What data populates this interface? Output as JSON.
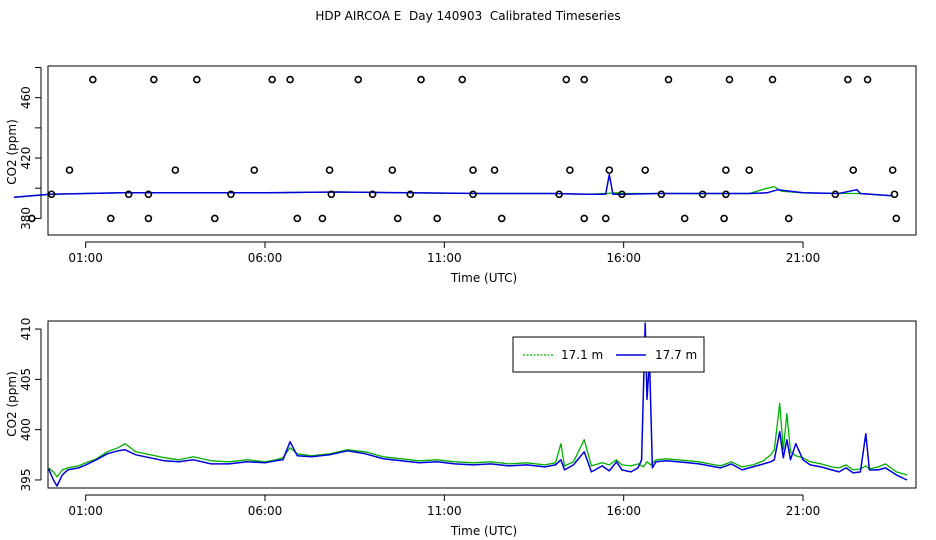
{
  "title": "HDP AIRCOA E  Day 140903  Calibrated Timeseries",
  "colors": {
    "green": "#00b000",
    "blue": "#0000dd",
    "black": "#000000"
  },
  "chart_data": [
    {
      "type": "scatter+line",
      "xlabel": "Time (UTC)",
      "ylabel": "CO2 (ppm)",
      "x_ticks": [
        1,
        6,
        11,
        16,
        21
      ],
      "x_tick_labels": [
        "01:00",
        "06:00",
        "11:00",
        "16:00",
        "21:00"
      ],
      "y_ticks": [
        380,
        420,
        460
      ],
      "y_tick_labels": [
        "380",
        "420",
        "460"
      ],
      "xlim": [
        -0.05,
        24.15
      ],
      "ylim": [
        369,
        481
      ],
      "grid": false,
      "calibration_points_hours": {
        "380": [
          -0.5,
          1.7,
          2.75,
          4.6,
          6.9,
          7.6,
          9.7,
          10.8,
          12.6,
          14.9,
          15.5,
          17.7,
          18.8,
          20.6,
          23.6
        ],
        "396": [
          0.05,
          2.2,
          2.75,
          5.05,
          7.85,
          9.0,
          10.05,
          11.8,
          14.2,
          15.95,
          17.05,
          18.2,
          18.85,
          21.9,
          23.55
        ],
        "412": [
          0.55,
          3.5,
          5.7,
          7.8,
          9.55,
          11.8,
          12.4,
          14.5,
          15.6,
          16.6,
          18.85,
          19.5,
          22.4,
          23.5
        ],
        "472": [
          1.2,
          2.9,
          4.1,
          6.2,
          6.7,
          8.6,
          10.35,
          11.5,
          14.4,
          14.9,
          17.25,
          18.95,
          20.15,
          22.25,
          22.8
        ]
      },
      "series": [
        {
          "name": "17.1 m",
          "x": [
            -1.0,
            0.0,
            1.0,
            2.0,
            4.0,
            6.0,
            8.0,
            10.0,
            12.0,
            14.0,
            15.0,
            15.5,
            15.8,
            16.0,
            17.0,
            18.0,
            19.5,
            20.0,
            20.2,
            20.4,
            21.0,
            22.0,
            22.5,
            23.5
          ],
          "values": [
            394,
            396,
            396.5,
            397,
            397,
            397,
            397.5,
            397,
            396.5,
            396.5,
            396,
            396.5,
            397,
            396.5,
            396.5,
            396.5,
            396.5,
            400,
            401,
            398,
            397,
            396.5,
            396.5,
            395
          ]
        },
        {
          "name": "17.7 m",
          "x": [
            -1.0,
            0.0,
            1.0,
            2.0,
            4.0,
            6.0,
            8.0,
            10.0,
            12.0,
            14.0,
            15.0,
            15.5,
            15.6,
            15.7,
            16.0,
            17.0,
            18.0,
            19.5,
            20.0,
            20.3,
            21.0,
            22.0,
            22.5,
            22.6,
            23.5
          ],
          "values": [
            394,
            396,
            396.5,
            397,
            397,
            397,
            397.5,
            397,
            396.5,
            396.5,
            396,
            396,
            409,
            396,
            396,
            396.5,
            396.5,
            396.5,
            397,
            399,
            397,
            396.5,
            399,
            396.5,
            395
          ]
        }
      ]
    },
    {
      "type": "line",
      "xlabel": "Time (UTC)",
      "ylabel": "CO2 (ppm)",
      "x_ticks": [
        1,
        6,
        11,
        16,
        21
      ],
      "x_tick_labels": [
        "01:00",
        "06:00",
        "11:00",
        "16:00",
        "21:00"
      ],
      "y_ticks": [
        395,
        400,
        405,
        410
      ],
      "y_tick_labels": [
        "395",
        "400",
        "405",
        "410"
      ],
      "xlim": [
        -0.05,
        24.15
      ],
      "ylim": [
        394.2,
        410.8
      ],
      "grid": false,
      "legend": {
        "placement": "top-center",
        "entries": [
          "17.1 m",
          "17.7 m"
        ]
      },
      "series": [
        {
          "name": "17.1 m",
          "x": [
            -0.03,
            0.1,
            0.2,
            0.35,
            0.5,
            0.8,
            1.0,
            1.3,
            1.6,
            1.9,
            2.1,
            2.4,
            2.8,
            3.2,
            3.6,
            4.0,
            4.5,
            5.0,
            5.5,
            6.0,
            6.3,
            6.5,
            6.7,
            6.9,
            7.3,
            7.8,
            8.3,
            8.8,
            9.3,
            9.8,
            10.3,
            10.8,
            11.3,
            11.8,
            12.3,
            12.8,
            13.3,
            13.8,
            14.1,
            14.25,
            14.35,
            14.6,
            14.9,
            15.1,
            15.4,
            15.6,
            15.8,
            15.95,
            16.2,
            16.4,
            16.55,
            16.65,
            16.75,
            16.9,
            17.2,
            17.5,
            17.8,
            18.1,
            18.4,
            18.7,
            19.0,
            19.3,
            19.6,
            19.9,
            20.1,
            20.2,
            20.35,
            20.45,
            20.55,
            20.65,
            20.8,
            21.0,
            21.2,
            21.5,
            21.8,
            22.0,
            22.2,
            22.4,
            22.6,
            22.75,
            22.85,
            23.1,
            23.3,
            23.6,
            23.9
          ],
          "values": [
            396.2,
            395.8,
            395.3,
            396.0,
            396.2,
            396.4,
            396.7,
            397.1,
            397.8,
            398.2,
            398.6,
            397.8,
            397.5,
            397.2,
            397.0,
            397.3,
            396.9,
            396.8,
            397.0,
            396.8,
            397.0,
            397.2,
            398.2,
            397.6,
            397.4,
            397.6,
            398.0,
            397.8,
            397.3,
            397.1,
            396.9,
            397.0,
            396.8,
            396.7,
            396.8,
            396.6,
            396.7,
            396.5,
            396.7,
            398.6,
            396.4,
            396.8,
            399.0,
            396.4,
            396.7,
            396.5,
            397.0,
            396.5,
            396.4,
            396.6,
            396.3,
            396.8,
            396.5,
            397.0,
            397.1,
            397.0,
            396.9,
            396.8,
            396.6,
            396.4,
            396.8,
            396.3,
            396.5,
            396.9,
            397.5,
            398.0,
            402.6,
            398.0,
            401.6,
            397.8,
            397.4,
            397.2,
            396.8,
            396.6,
            396.3,
            396.2,
            396.5,
            396.0,
            396.1,
            396.4,
            396.1,
            396.3,
            396.6,
            395.8,
            395.5
          ]
        },
        {
          "name": "17.7 m",
          "x": [
            -0.03,
            0.1,
            0.2,
            0.35,
            0.5,
            0.8,
            1.0,
            1.3,
            1.6,
            1.9,
            2.1,
            2.4,
            2.8,
            3.2,
            3.6,
            4.0,
            4.5,
            5.0,
            5.5,
            6.0,
            6.3,
            6.5,
            6.7,
            6.9,
            7.3,
            7.8,
            8.3,
            8.8,
            9.3,
            9.8,
            10.3,
            10.8,
            11.3,
            11.8,
            12.3,
            12.8,
            13.3,
            13.8,
            14.1,
            14.25,
            14.35,
            14.6,
            14.9,
            15.1,
            15.4,
            15.6,
            15.8,
            15.95,
            16.2,
            16.4,
            16.5,
            16.6,
            16.65,
            16.72,
            16.8,
            16.9,
            17.2,
            17.5,
            17.8,
            18.1,
            18.4,
            18.7,
            19.0,
            19.3,
            19.6,
            19.9,
            20.1,
            20.2,
            20.35,
            20.45,
            20.55,
            20.65,
            20.8,
            21.0,
            21.2,
            21.5,
            21.8,
            22.0,
            22.2,
            22.4,
            22.6,
            22.75,
            22.85,
            23.1,
            23.3,
            23.6,
            23.9
          ],
          "values": [
            396.1,
            395.0,
            394.4,
            395.5,
            396.0,
            396.2,
            396.5,
            397.0,
            397.6,
            397.9,
            398.0,
            397.5,
            397.2,
            396.9,
            396.8,
            397.0,
            396.6,
            396.6,
            396.8,
            396.7,
            396.9,
            397.0,
            398.8,
            397.4,
            397.3,
            397.5,
            397.9,
            397.6,
            397.1,
            396.9,
            396.7,
            396.8,
            396.6,
            396.5,
            396.6,
            396.4,
            396.5,
            396.3,
            396.5,
            397.0,
            396.0,
            396.5,
            397.8,
            395.8,
            396.4,
            395.9,
            396.8,
            396.0,
            395.8,
            396.2,
            397.0,
            410.6,
            403.0,
            407.0,
            396.2,
            396.8,
            396.9,
            396.8,
            396.7,
            396.6,
            396.4,
            396.2,
            396.6,
            396.0,
            396.3,
            396.6,
            396.8,
            397.0,
            399.8,
            397.2,
            399.0,
            397.0,
            398.6,
            397.0,
            396.5,
            396.3,
            396.0,
            395.8,
            396.2,
            395.7,
            395.8,
            399.6,
            396.0,
            396.0,
            396.2,
            395.5,
            395.0
          ]
        }
      ]
    }
  ]
}
